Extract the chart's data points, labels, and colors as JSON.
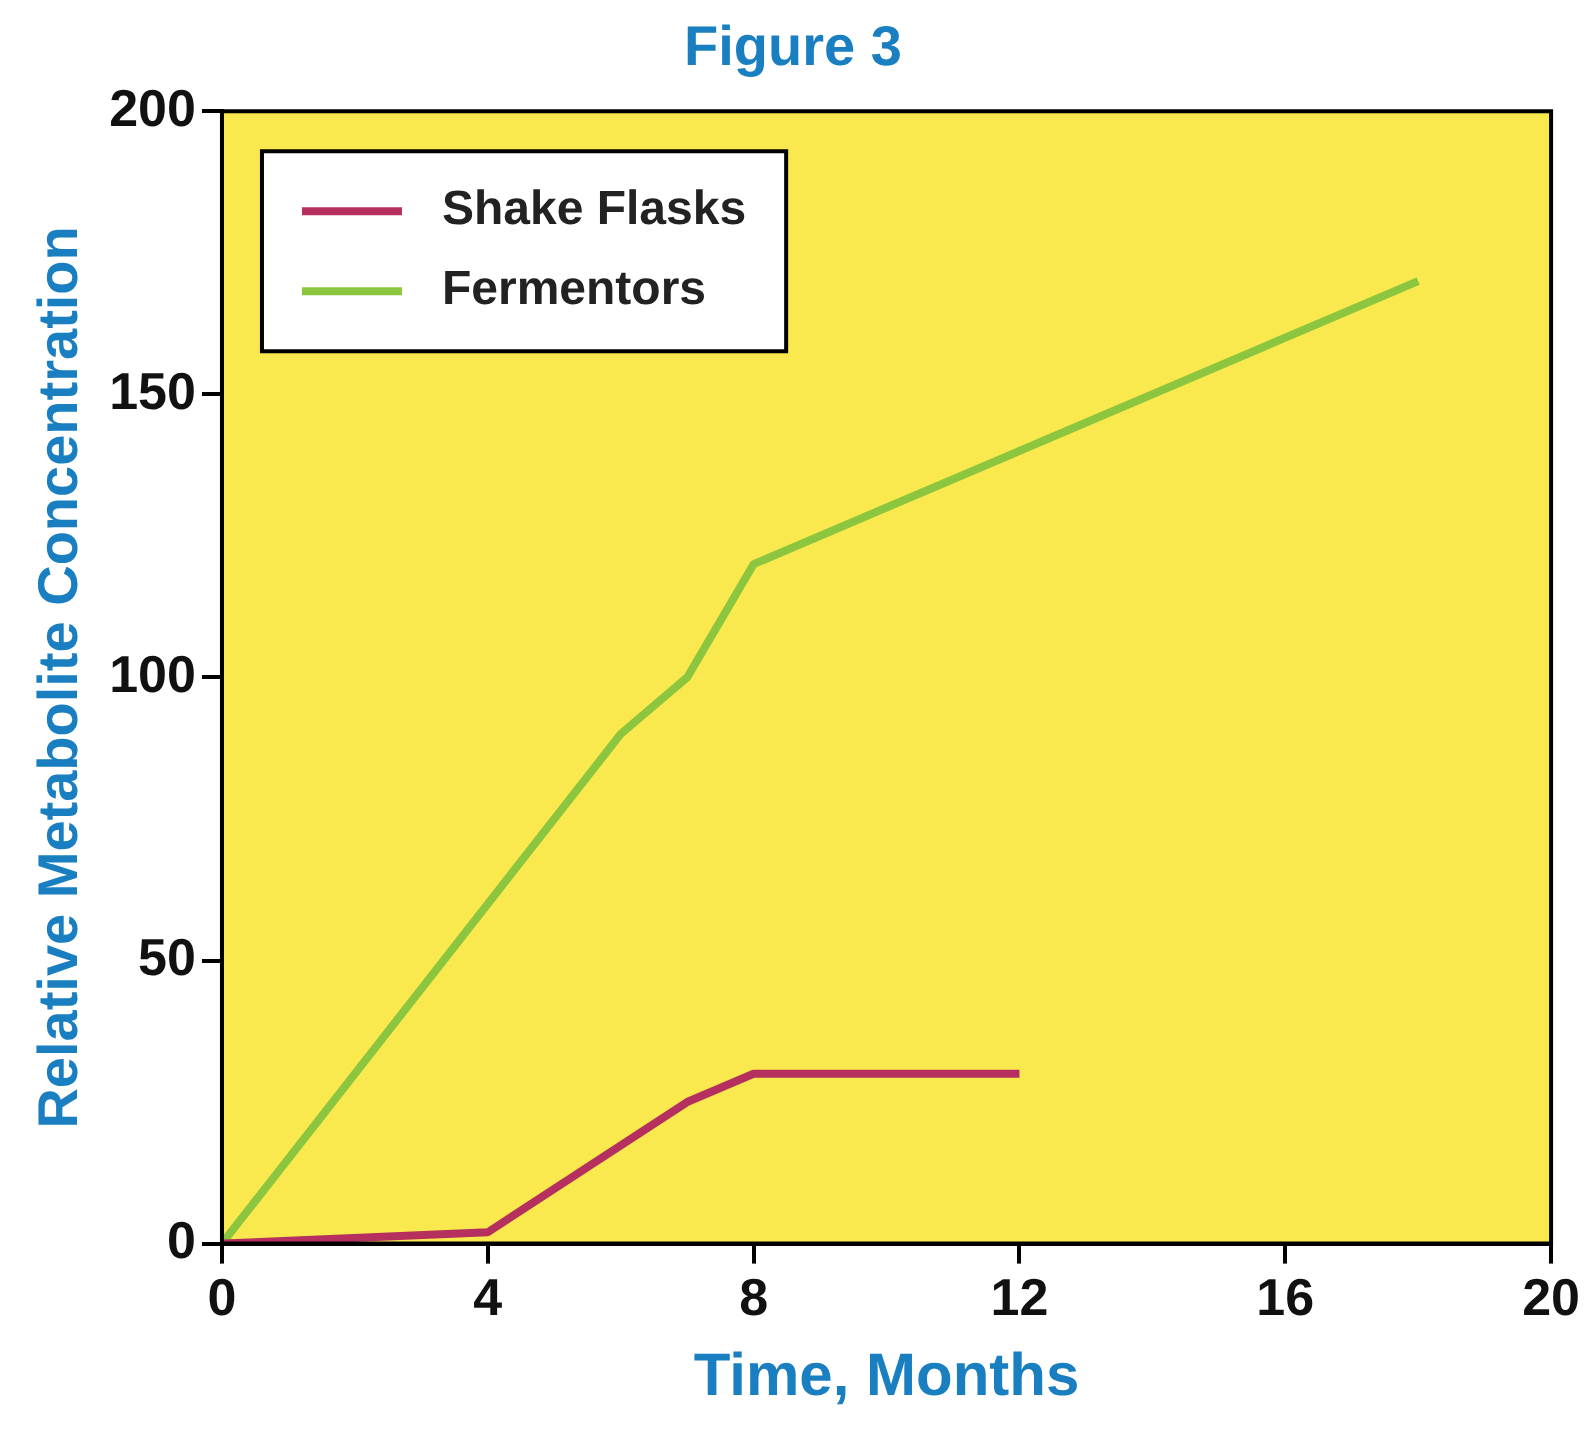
{
  "chart_data": {
    "type": "line",
    "title": "Figure 3",
    "xlabel": "Time, Months",
    "ylabel": "Relative Metabolite Concentration",
    "xlim": [
      0,
      20
    ],
    "xticks": [
      0,
      4,
      8,
      12,
      16,
      20
    ],
    "ylim": [
      0,
      200
    ],
    "yticks": [
      0,
      50,
      100,
      150,
      200
    ],
    "grid": false,
    "legend": "top left",
    "marker": "none",
    "line_style": "solid",
    "series": [
      {
        "name": "Shake Flasks",
        "color": "#b5305f",
        "x": [
          0,
          4,
          7,
          8,
          12
        ],
        "values": [
          0,
          2,
          25,
          30,
          30
        ]
      },
      {
        "name": "Fermentors",
        "color": "#8cc63f",
        "x": [
          0,
          6,
          7,
          8,
          18
        ],
        "values": [
          0,
          90,
          100,
          120,
          170
        ]
      }
    ]
  }
}
